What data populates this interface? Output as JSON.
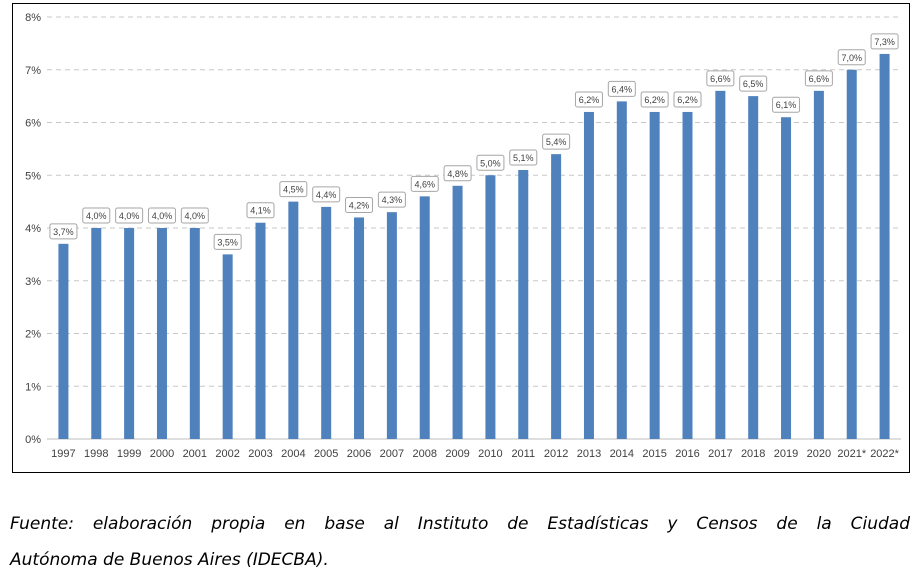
{
  "chart_data": {
    "type": "bar",
    "categories": [
      "1997",
      "1998",
      "1999",
      "2000",
      "2001",
      "2002",
      "2003",
      "2004",
      "2005",
      "2006",
      "2007",
      "2008",
      "2009",
      "2010",
      "2011",
      "2012",
      "2013",
      "2014",
      "2015",
      "2016",
      "2017",
      "2018",
      "2019",
      "2020",
      "2021*",
      "2022*"
    ],
    "values": [
      3.7,
      4.0,
      4.0,
      4.0,
      4.0,
      3.5,
      4.1,
      4.5,
      4.4,
      4.2,
      4.3,
      4.6,
      4.8,
      5.0,
      5.1,
      5.4,
      6.2,
      6.4,
      6.2,
      6.2,
      6.6,
      6.5,
      6.1,
      6.6,
      7.0,
      7.3
    ],
    "data_labels": [
      "3,7%",
      "4,0%",
      "4,0%",
      "4,0%",
      "4,0%",
      "3,5%",
      "4,1%",
      "4,5%",
      "4,4%",
      "4,2%",
      "4,3%",
      "4,6%",
      "4,8%",
      "5,0%",
      "5,1%",
      "5,4%",
      "6,2%",
      "6,4%",
      "6,2%",
      "6,2%",
      "6,6%",
      "6,5%",
      "6,1%",
      "6,6%",
      "7,0%",
      "7,3%"
    ],
    "y_ticks": [
      0,
      1,
      2,
      3,
      4,
      5,
      6,
      7,
      8
    ],
    "y_tick_labels": [
      "0%",
      "1%",
      "2%",
      "3%",
      "4%",
      "5%",
      "6%",
      "7%",
      "8%"
    ],
    "ylim": [
      0,
      8
    ],
    "title": "",
    "xlabel": "",
    "ylabel": "",
    "grid": true,
    "bar_color": "#4f81bd",
    "grid_color": "#c8c8c8",
    "label_border_color": "#a6a6a6"
  },
  "caption": {
    "line1": "Fuente: elaboración propia en base al Instituto de Estadísticas y Censos de la Ciudad",
    "line2": "Autónoma de Buenos Aires (IDECBA)."
  }
}
